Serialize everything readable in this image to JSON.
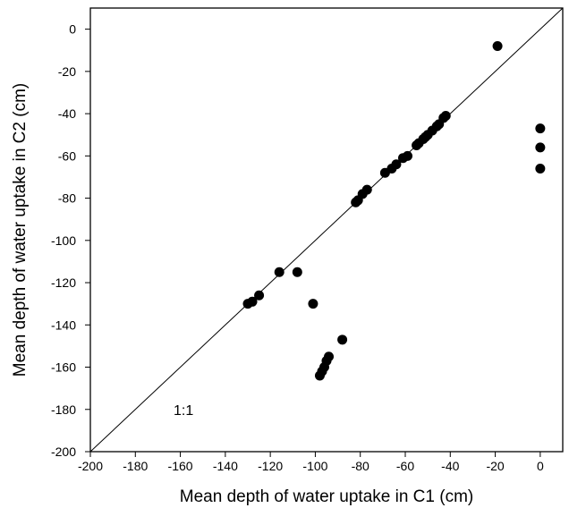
{
  "chart_data": {
    "type": "scatter",
    "title": "",
    "xlabel": "Mean depth of water uptake in C1 (cm)",
    "ylabel": "Mean depth of water uptake in C2 (cm)",
    "xlim": [
      -200,
      10
    ],
    "ylim": [
      -200,
      10
    ],
    "x_ticks": [
      -200,
      -180,
      -160,
      -140,
      -120,
      -100,
      -80,
      -60,
      -40,
      -20,
      0
    ],
    "y_ticks": [
      -200,
      -180,
      -160,
      -140,
      -120,
      -100,
      -80,
      -60,
      -40,
      -20,
      0
    ],
    "grid": false,
    "legend": "none",
    "reference_line": {
      "label": "1:1",
      "from": [
        -200,
        -200
      ],
      "to": [
        10,
        10
      ]
    },
    "annotations": [
      {
        "text": "1:1",
        "x": -163,
        "y": -180
      }
    ],
    "series": [
      {
        "color": "#000000",
        "marker": "filled-circle",
        "points": [
          {
            "x": -19,
            "y": -8
          },
          {
            "x": 0,
            "y": -47
          },
          {
            "x": 0,
            "y": -56
          },
          {
            "x": 0,
            "y": -66
          },
          {
            "x": -42,
            "y": -41
          },
          {
            "x": -43,
            "y": -42
          },
          {
            "x": -45,
            "y": -45
          },
          {
            "x": -46,
            "y": -46
          },
          {
            "x": -48,
            "y": -48
          },
          {
            "x": -50,
            "y": -50
          },
          {
            "x": -51,
            "y": -51
          },
          {
            "x": -52,
            "y": -52
          },
          {
            "x": -54,
            "y": -54
          },
          {
            "x": -55,
            "y": -55
          },
          {
            "x": -59,
            "y": -60
          },
          {
            "x": -61,
            "y": -61
          },
          {
            "x": -64,
            "y": -64
          },
          {
            "x": -66,
            "y": -66
          },
          {
            "x": -69,
            "y": -68
          },
          {
            "x": -77,
            "y": -76
          },
          {
            "x": -79,
            "y": -78
          },
          {
            "x": -81,
            "y": -81
          },
          {
            "x": -82,
            "y": -82
          },
          {
            "x": -108,
            "y": -115
          },
          {
            "x": -116,
            "y": -115
          },
          {
            "x": -125,
            "y": -126
          },
          {
            "x": -128,
            "y": -129
          },
          {
            "x": -130,
            "y": -130
          },
          {
            "x": -101,
            "y": -130
          },
          {
            "x": -88,
            "y": -147
          },
          {
            "x": -94,
            "y": -155
          },
          {
            "x": -95,
            "y": -157
          },
          {
            "x": -96,
            "y": -160
          },
          {
            "x": -97,
            "y": -162
          },
          {
            "x": -98,
            "y": -164
          }
        ]
      }
    ]
  }
}
